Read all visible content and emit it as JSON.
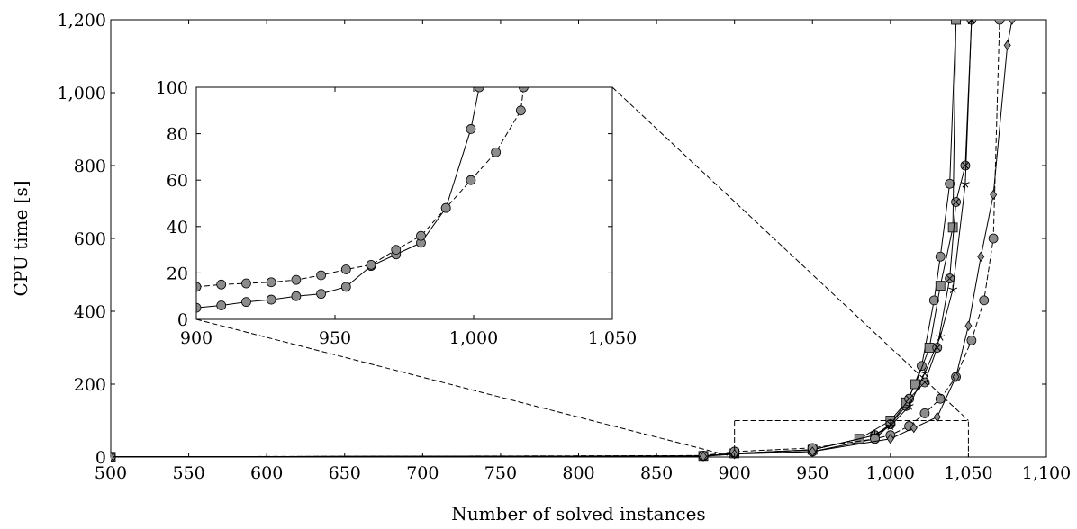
{
  "chart_data": {
    "type": "line",
    "main": {
      "xlabel": "Number of solved instances",
      "ylabel": "CPU time [s]",
      "xlim": [
        500,
        1100
      ],
      "ylim": [
        0,
        1200
      ],
      "xticks": [
        "500",
        "550",
        "600",
        "650",
        "700",
        "750",
        "800",
        "850",
        "900",
        "950",
        "1,000",
        "1,050",
        "1,100"
      ],
      "yticks": [
        "0",
        "200",
        "400",
        "600",
        "800",
        "1,000",
        "1,200"
      ],
      "xtick_values": [
        500,
        550,
        600,
        650,
        700,
        750,
        800,
        850,
        900,
        950,
        1000,
        1050,
        1100
      ],
      "ytick_values": [
        0,
        200,
        400,
        600,
        800,
        1000,
        1200
      ],
      "zoom_box": {
        "x": [
          900,
          1050
        ],
        "y": [
          0,
          100
        ]
      },
      "series": [
        {
          "marker": "circle",
          "dash": "solid",
          "x": [
            500,
            880,
            900,
            950,
            990,
            1000,
            1010,
            1020,
            1028,
            1032,
            1038,
            1042
          ],
          "y": [
            0.5,
            3,
            10,
            15,
            50,
            90,
            140,
            250,
            430,
            550,
            750,
            1200
          ]
        },
        {
          "marker": "square",
          "dash": "solid",
          "x": [
            500,
            880,
            900,
            950,
            980,
            1000,
            1010,
            1016,
            1025,
            1032,
            1040,
            1042
          ],
          "y": [
            0.5,
            3,
            10,
            20,
            50,
            100,
            150,
            200,
            300,
            470,
            630,
            1200
          ]
        },
        {
          "marker": "otimes",
          "dash": "solid",
          "x": [
            500,
            880,
            900,
            950,
            990,
            1000,
            1012,
            1022,
            1030,
            1038,
            1042,
            1048,
            1052
          ],
          "y": [
            0.5,
            3,
            10,
            20,
            60,
            90,
            160,
            205,
            300,
            490,
            700,
            800,
            1200
          ]
        },
        {
          "marker": "star",
          "dash": "solid",
          "x": [
            500,
            880,
            900,
            950,
            990,
            1000,
            1012,
            1022,
            1032,
            1040,
            1048,
            1052
          ],
          "y": [
            0.5,
            3,
            10,
            20,
            60,
            85,
            140,
            230,
            330,
            460,
            750,
            1200
          ]
        },
        {
          "marker": "circle",
          "dash": "dashed",
          "x": [
            500,
            880,
            900,
            950,
            990,
            1000,
            1012,
            1022,
            1032,
            1042,
            1052,
            1060,
            1066,
            1070
          ],
          "y": [
            0.5,
            4,
            15,
            25,
            50,
            60,
            85,
            120,
            160,
            220,
            320,
            430,
            600,
            1200
          ]
        },
        {
          "marker": "diamond",
          "dash": "solid",
          "x": [
            500,
            880,
            900,
            950,
            1000,
            1015,
            1030,
            1042,
            1050,
            1058,
            1066,
            1075,
            1078
          ],
          "y": [
            0.5,
            2,
            8,
            15,
            50,
            80,
            110,
            220,
            360,
            550,
            720,
            1130,
            1200
          ]
        }
      ]
    },
    "inset": {
      "xlim": [
        900,
        1050
      ],
      "ylim": [
        0,
        100
      ],
      "xticks": [
        "900",
        "950",
        "1,000",
        "1,050"
      ],
      "yticks": [
        "0",
        "20",
        "40",
        "60",
        "80",
        "100"
      ],
      "xtick_values": [
        900,
        950,
        1000,
        1050
      ],
      "ytick_values": [
        0,
        20,
        40,
        60,
        80,
        100
      ],
      "series": [
        {
          "marker": "circle",
          "dash": "solid",
          "x": [
            900,
            909,
            918,
            927,
            936,
            945,
            954,
            963,
            972,
            981,
            990,
            999,
            1002
          ],
          "y": [
            5,
            6,
            7.5,
            8.5,
            10,
            11,
            14,
            23,
            28,
            33,
            48,
            82,
            100
          ]
        },
        {
          "marker": "circle",
          "dash": "dashed",
          "x": [
            900,
            909,
            918,
            927,
            936,
            945,
            954,
            963,
            972,
            981,
            990,
            999,
            1008,
            1017,
            1018
          ],
          "y": [
            14,
            15,
            15.5,
            16,
            17,
            19,
            21.5,
            23.5,
            30,
            36,
            48,
            60,
            72,
            90,
            100
          ]
        }
      ]
    }
  }
}
